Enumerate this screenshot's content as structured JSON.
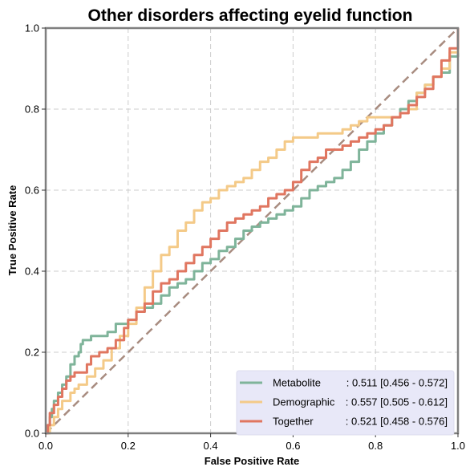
{
  "chart_data": {
    "type": "line",
    "title": "Other disorders affecting eyelid function",
    "xlabel": "False Positive Rate",
    "ylabel": "True Positive Rate",
    "xlim": [
      0,
      1
    ],
    "ylim": [
      0,
      1
    ],
    "xticks": [
      "0.0",
      "0.2",
      "0.4",
      "0.6",
      "0.8",
      "1.0"
    ],
    "yticks": [
      "0.0",
      "0.2",
      "0.4",
      "0.6",
      "0.8",
      "1.0"
    ],
    "grid": true,
    "legend_position": "lower-right",
    "diagonal": {
      "color": "#a88c80",
      "style": "dashed"
    },
    "series": [
      {
        "name": "Metabolite",
        "auc_label": ": 0.511 [0.456 - 0.572]",
        "color": "#7fb49a",
        "x": [
          0.0,
          0.005,
          0.01,
          0.015,
          0.02,
          0.03,
          0.04,
          0.05,
          0.06,
          0.07,
          0.08,
          0.085,
          0.09,
          0.1,
          0.11,
          0.13,
          0.15,
          0.17,
          0.19,
          0.2,
          0.22,
          0.24,
          0.26,
          0.28,
          0.3,
          0.32,
          0.34,
          0.36,
          0.38,
          0.4,
          0.42,
          0.44,
          0.46,
          0.48,
          0.5,
          0.52,
          0.54,
          0.56,
          0.58,
          0.6,
          0.62,
          0.64,
          0.66,
          0.68,
          0.7,
          0.72,
          0.74,
          0.76,
          0.78,
          0.8,
          0.82,
          0.84,
          0.86,
          0.88,
          0.9,
          0.92,
          0.94,
          0.96,
          0.98,
          1.0
        ],
        "y": [
          0.0,
          0.02,
          0.04,
          0.06,
          0.08,
          0.1,
          0.12,
          0.14,
          0.17,
          0.19,
          0.2,
          0.22,
          0.23,
          0.23,
          0.24,
          0.24,
          0.25,
          0.27,
          0.27,
          0.28,
          0.3,
          0.31,
          0.32,
          0.34,
          0.36,
          0.37,
          0.38,
          0.4,
          0.42,
          0.43,
          0.45,
          0.46,
          0.48,
          0.5,
          0.51,
          0.52,
          0.53,
          0.54,
          0.55,
          0.56,
          0.58,
          0.6,
          0.61,
          0.62,
          0.63,
          0.65,
          0.67,
          0.7,
          0.72,
          0.74,
          0.76,
          0.78,
          0.8,
          0.82,
          0.84,
          0.86,
          0.88,
          0.89,
          0.93,
          1.0
        ]
      },
      {
        "name": "Demographic",
        "auc_label": ": 0.557 [0.505 - 0.612]",
        "color": "#f4ca88",
        "x": [
          0.0,
          0.01,
          0.02,
          0.03,
          0.04,
          0.06,
          0.07,
          0.08,
          0.1,
          0.12,
          0.14,
          0.16,
          0.18,
          0.2,
          0.22,
          0.24,
          0.26,
          0.28,
          0.3,
          0.32,
          0.34,
          0.36,
          0.38,
          0.4,
          0.42,
          0.44,
          0.46,
          0.48,
          0.5,
          0.52,
          0.54,
          0.56,
          0.58,
          0.6,
          0.62,
          0.64,
          0.66,
          0.68,
          0.7,
          0.72,
          0.74,
          0.76,
          0.78,
          0.8,
          0.82,
          0.84,
          0.86,
          0.88,
          0.9,
          0.92,
          0.94,
          0.96,
          0.98,
          1.0
        ],
        "y": [
          0.0,
          0.02,
          0.04,
          0.06,
          0.08,
          0.1,
          0.11,
          0.12,
          0.14,
          0.16,
          0.18,
          0.21,
          0.24,
          0.27,
          0.31,
          0.36,
          0.4,
          0.44,
          0.46,
          0.5,
          0.52,
          0.55,
          0.57,
          0.58,
          0.6,
          0.61,
          0.62,
          0.63,
          0.65,
          0.67,
          0.68,
          0.7,
          0.72,
          0.73,
          0.73,
          0.73,
          0.74,
          0.74,
          0.74,
          0.75,
          0.76,
          0.77,
          0.78,
          0.78,
          0.78,
          0.78,
          0.79,
          0.8,
          0.84,
          0.86,
          0.88,
          0.9,
          0.94,
          1.0
        ]
      },
      {
        "name": "Together",
        "auc_label": ": 0.521 [0.458 - 0.576]",
        "color": "#e07660",
        "x": [
          0.0,
          0.005,
          0.01,
          0.02,
          0.03,
          0.04,
          0.05,
          0.06,
          0.07,
          0.08,
          0.1,
          0.11,
          0.13,
          0.15,
          0.17,
          0.19,
          0.2,
          0.22,
          0.24,
          0.26,
          0.28,
          0.3,
          0.32,
          0.34,
          0.36,
          0.38,
          0.4,
          0.42,
          0.44,
          0.46,
          0.48,
          0.5,
          0.52,
          0.54,
          0.56,
          0.58,
          0.6,
          0.62,
          0.64,
          0.66,
          0.68,
          0.7,
          0.72,
          0.74,
          0.76,
          0.78,
          0.8,
          0.82,
          0.84,
          0.86,
          0.88,
          0.9,
          0.92,
          0.94,
          0.96,
          0.98,
          1.0
        ],
        "y": [
          0.0,
          0.02,
          0.05,
          0.07,
          0.09,
          0.11,
          0.13,
          0.14,
          0.15,
          0.15,
          0.17,
          0.19,
          0.2,
          0.21,
          0.23,
          0.26,
          0.28,
          0.3,
          0.32,
          0.35,
          0.37,
          0.38,
          0.4,
          0.42,
          0.44,
          0.46,
          0.48,
          0.5,
          0.52,
          0.53,
          0.54,
          0.55,
          0.56,
          0.58,
          0.59,
          0.6,
          0.62,
          0.65,
          0.67,
          0.68,
          0.7,
          0.7,
          0.71,
          0.72,
          0.73,
          0.74,
          0.75,
          0.76,
          0.78,
          0.79,
          0.81,
          0.83,
          0.85,
          0.88,
          0.92,
          0.95,
          1.0
        ]
      }
    ]
  }
}
